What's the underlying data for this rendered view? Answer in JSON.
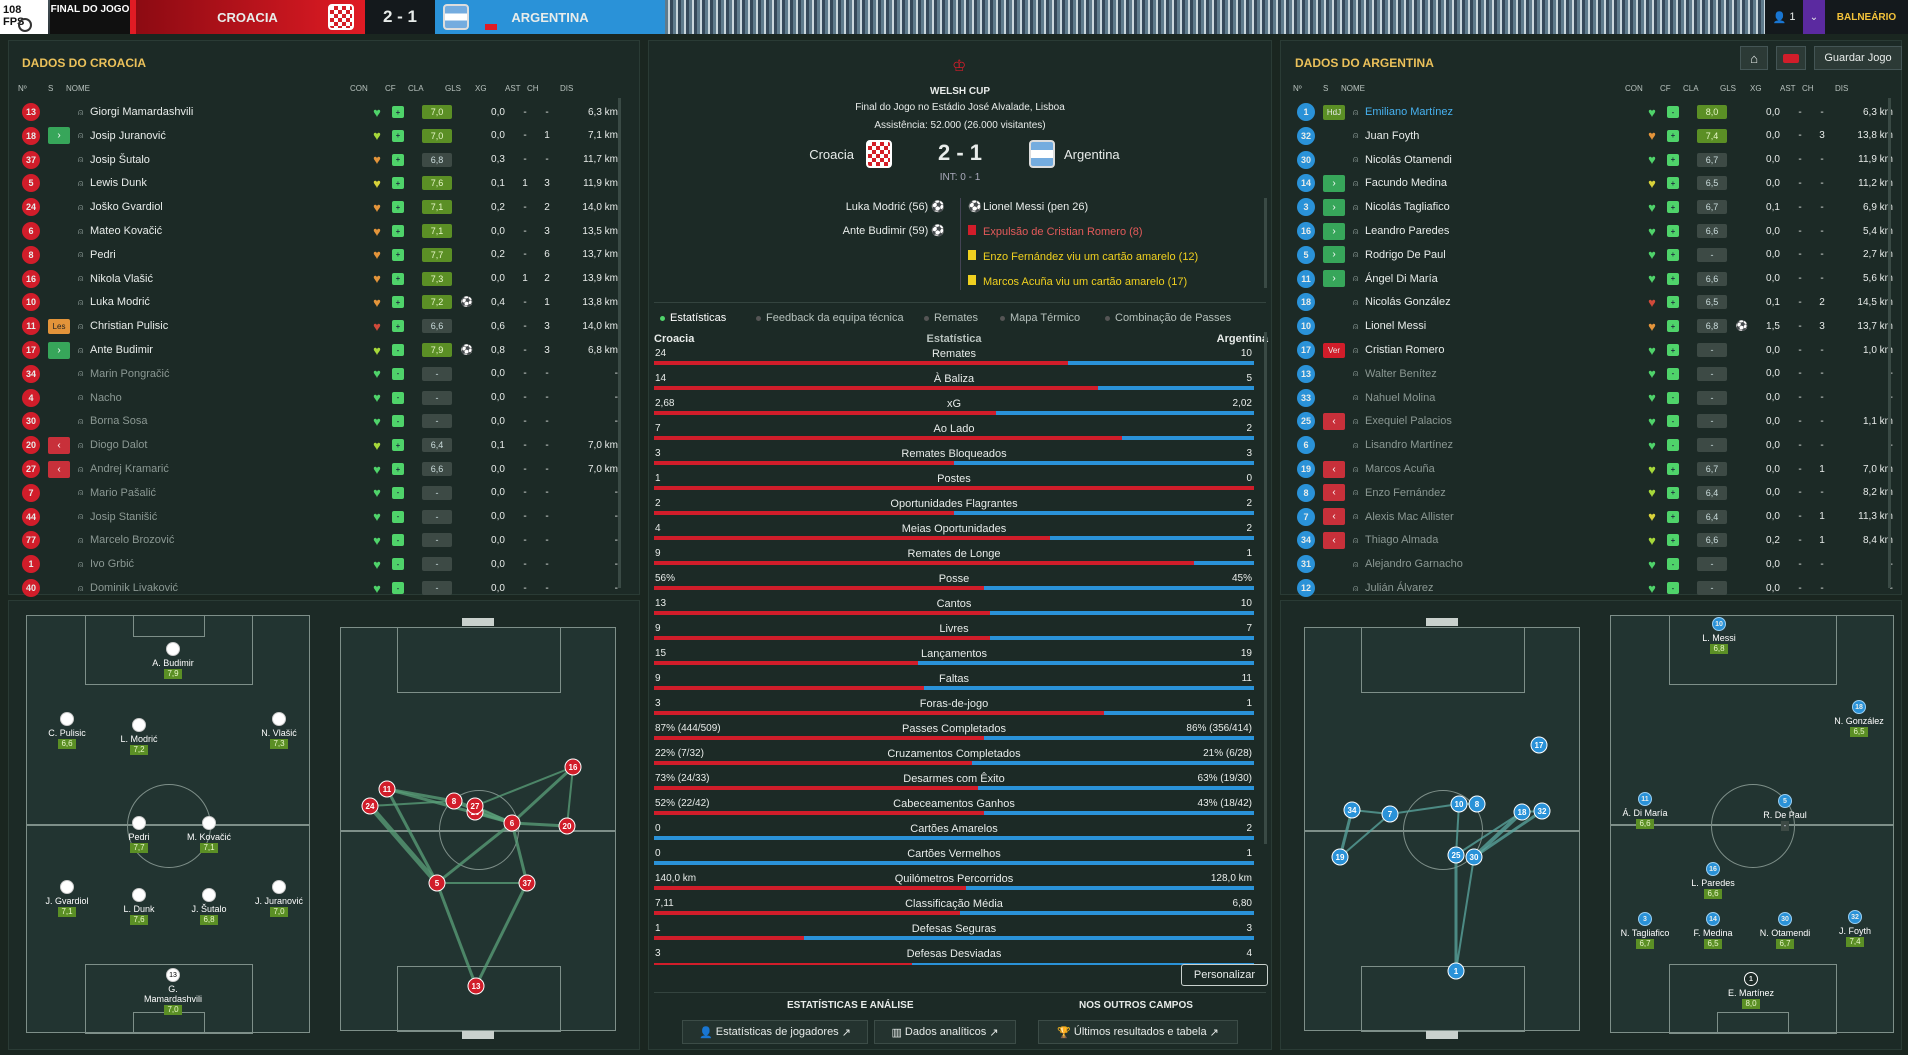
{
  "topbar": {
    "fps": "108 FPS",
    "stage": "FINAL DO JOGO",
    "home_team": "CROACIA",
    "score": "2 - 1",
    "away_team": "ARGENTINA",
    "notifications": "1",
    "balneario": "BALNEÁRIO"
  },
  "header_buttons": {
    "save": "Guardar Jogo",
    "home_icon": "home-icon"
  },
  "left_panel": {
    "title": "DADOS DO CROACIA",
    "headers": [
      "Nº",
      "S",
      "NOME",
      "CON",
      "CF",
      "CLA",
      "GLS",
      "XG",
      "AST",
      "CH",
      "DIS"
    ],
    "players": [
      {
        "n": "13",
        "s": "",
        "name": "Giorgi Mamardashvili",
        "cf": "+",
        "cla": "7,0",
        "gls": "",
        "xg": "0,0",
        "ast": "-",
        "ch": "-",
        "dis": "6,3 km",
        "heart": "g",
        "sub": false
      },
      {
        "n": "18",
        "s": "in",
        "name": "Josip Juranović",
        "cf": "+",
        "cla": "7,0",
        "gls": "",
        "xg": "0,0",
        "ast": "-",
        "ch": "1",
        "dis": "7,1 km",
        "heart": "lg",
        "sub": false
      },
      {
        "n": "37",
        "s": "",
        "name": "Josip Šutalo",
        "cf": "+",
        "cla": "6,8",
        "gls": "",
        "xg": "0,3",
        "ast": "-",
        "ch": "-",
        "dis": "11,7 km",
        "heart": "o",
        "sub": false,
        "dr": true
      },
      {
        "n": "5",
        "s": "",
        "name": "Lewis Dunk",
        "cf": "+",
        "cla": "7,6",
        "gls": "",
        "xg": "0,1",
        "ast": "1",
        "ch": "3",
        "dis": "11,9 km",
        "heart": "y",
        "sub": false
      },
      {
        "n": "24",
        "s": "",
        "name": "Joško Gvardiol",
        "cf": "+",
        "cla": "7,1",
        "gls": "",
        "xg": "0,2",
        "ast": "-",
        "ch": "2",
        "dis": "14,0 km",
        "heart": "o",
        "sub": false
      },
      {
        "n": "6",
        "s": "",
        "name": "Mateo Kovačić",
        "cf": "+",
        "cla": "7,1",
        "gls": "",
        "xg": "0,0",
        "ast": "-",
        "ch": "3",
        "dis": "13,5 km",
        "heart": "o",
        "sub": false
      },
      {
        "n": "8",
        "s": "",
        "name": "Pedri",
        "cf": "+",
        "cla": "7,7",
        "gls": "",
        "xg": "0,2",
        "ast": "-",
        "ch": "6",
        "dis": "13,7 km",
        "heart": "o",
        "sub": false
      },
      {
        "n": "16",
        "s": "",
        "name": "Nikola Vlašić",
        "cf": "+",
        "cla": "7,3",
        "gls": "",
        "xg": "0,0",
        "ast": "1",
        "ch": "2",
        "dis": "13,9 km",
        "heart": "o",
        "sub": false
      },
      {
        "n": "10",
        "s": "",
        "name": "Luka Modrić",
        "cf": "+",
        "cla": "7,2",
        "gls": "⚽",
        "xg": "0,4",
        "ast": "-",
        "ch": "1",
        "dis": "13,8 km",
        "heart": "o",
        "sub": false
      },
      {
        "n": "11",
        "s": "les",
        "name": "Christian Pulisic",
        "cf": "+",
        "cla": "6,6",
        "gls": "",
        "xg": "0,6",
        "ast": "-",
        "ch": "3",
        "dis": "14,0 km",
        "heart": "r",
        "sub": false,
        "dr": true
      },
      {
        "n": "17",
        "s": "in",
        "name": "Ante Budimir",
        "cf": "-",
        "cla": "7,9",
        "gls": "⚽",
        "xg": "0,8",
        "ast": "-",
        "ch": "3",
        "dis": "6,8 km",
        "heart": "lg",
        "sub": false
      },
      {
        "n": "34",
        "s": "",
        "name": "Marin Pongračić",
        "cf": "-",
        "cla": "-",
        "gls": "",
        "xg": "0,0",
        "ast": "-",
        "ch": "-",
        "dis": "-",
        "heart": "g",
        "sub": true
      },
      {
        "n": "4",
        "s": "",
        "name": "Nacho",
        "cf": "-",
        "cla": "-",
        "gls": "",
        "xg": "0,0",
        "ast": "-",
        "ch": "-",
        "dis": "-",
        "heart": "g",
        "sub": true
      },
      {
        "n": "30",
        "s": "",
        "name": "Borna Sosa",
        "cf": "-",
        "cla": "-",
        "gls": "",
        "xg": "0,0",
        "ast": "-",
        "ch": "-",
        "dis": "-",
        "heart": "g",
        "sub": true
      },
      {
        "n": "20",
        "s": "out",
        "name": "Diogo Dalot",
        "cf": "+",
        "cla": "6,4",
        "gls": "",
        "xg": "0,1",
        "ast": "-",
        "ch": "-",
        "dis": "7,0 km",
        "heart": "lg",
        "sub": true,
        "dr": true
      },
      {
        "n": "27",
        "s": "out",
        "name": "Andrej Kramarić",
        "cf": "+",
        "cla": "6,6",
        "gls": "",
        "xg": "0,0",
        "ast": "-",
        "ch": "-",
        "dis": "7,0 km",
        "heart": "g",
        "sub": true,
        "dr": true
      },
      {
        "n": "7",
        "s": "",
        "name": "Mario Pašalić",
        "cf": "-",
        "cla": "-",
        "gls": "",
        "xg": "0,0",
        "ast": "-",
        "ch": "-",
        "dis": "-",
        "heart": "g",
        "sub": true
      },
      {
        "n": "44",
        "s": "",
        "name": "Josip Stanišić",
        "cf": "-",
        "cla": "-",
        "gls": "",
        "xg": "0,0",
        "ast": "-",
        "ch": "-",
        "dis": "-",
        "heart": "g",
        "sub": true
      },
      {
        "n": "77",
        "s": "",
        "name": "Marcelo Brozović",
        "cf": "-",
        "cla": "-",
        "gls": "",
        "xg": "0,0",
        "ast": "-",
        "ch": "-",
        "dis": "-",
        "heart": "g",
        "sub": true
      },
      {
        "n": "1",
        "s": "",
        "name": "Ivo Grbić",
        "cf": "-",
        "cla": "-",
        "gls": "",
        "xg": "0,0",
        "ast": "-",
        "ch": "-",
        "dis": "-",
        "heart": "g",
        "sub": true
      },
      {
        "n": "40",
        "s": "",
        "name": "Dominik Livaković",
        "cf": "-",
        "cla": "-",
        "gls": "",
        "xg": "0,0",
        "ast": "-",
        "ch": "-",
        "dis": "-",
        "heart": "g",
        "sub": true
      }
    ]
  },
  "right_panel": {
    "title": "DADOS DO ARGENTINA",
    "headers": [
      "Nº",
      "S",
      "NOME",
      "CON",
      "CF",
      "CLA",
      "GLS",
      "XG",
      "AST",
      "CH",
      "DIS"
    ],
    "players": [
      {
        "n": "1",
        "s": "hdj",
        "name": "Emiliano Martínez",
        "cf": "-",
        "cla": "8,0",
        "gls": "",
        "xg": "0,0",
        "ast": "-",
        "ch": "-",
        "dis": "6,3 km",
        "heart": "g",
        "sub": false,
        "hl": true
      },
      {
        "n": "32",
        "s": "",
        "name": "Juan Foyth",
        "cf": "+",
        "cla": "7,4",
        "gls": "",
        "xg": "0,0",
        "ast": "-",
        "ch": "3",
        "dis": "13,8 km",
        "heart": "o",
        "sub": false
      },
      {
        "n": "30",
        "s": "",
        "name": "Nicolás Otamendi",
        "cf": "+",
        "cla": "6,7",
        "gls": "",
        "xg": "0,0",
        "ast": "-",
        "ch": "-",
        "dis": "11,9 km",
        "heart": "g",
        "sub": false,
        "dr": true
      },
      {
        "n": "14",
        "s": "in",
        "name": "Facundo Medina",
        "cf": "+",
        "cla": "6,5",
        "gls": "",
        "xg": "0,0",
        "ast": "-",
        "ch": "-",
        "dis": "11,2 km",
        "heart": "y",
        "sub": false,
        "dr": true
      },
      {
        "n": "3",
        "s": "in",
        "name": "Nicolás Tagliafico",
        "cf": "+",
        "cla": "6,7",
        "gls": "",
        "xg": "0,1",
        "ast": "-",
        "ch": "-",
        "dis": "6,9 km",
        "heart": "g",
        "sub": false,
        "dr": true
      },
      {
        "n": "16",
        "s": "in",
        "name": "Leandro Paredes",
        "cf": "+",
        "cla": "6,6",
        "gls": "",
        "xg": "0,0",
        "ast": "-",
        "ch": "-",
        "dis": "5,4 km",
        "heart": "g",
        "sub": false,
        "dr": true
      },
      {
        "n": "5",
        "s": "in",
        "name": "Rodrigo De Paul",
        "cf": "+",
        "cla": "-",
        "gls": "",
        "xg": "0,0",
        "ast": "-",
        "ch": "-",
        "dis": "2,7 km",
        "heart": "g",
        "sub": false,
        "dr": true
      },
      {
        "n": "11",
        "s": "in",
        "name": "Ángel Di María",
        "cf": "+",
        "cla": "6,6",
        "gls": "",
        "xg": "0,0",
        "ast": "-",
        "ch": "-",
        "dis": "5,6 km",
        "heart": "g",
        "sub": false,
        "dr": true
      },
      {
        "n": "18",
        "s": "",
        "name": "Nicolás González",
        "cf": "+",
        "cla": "6,5",
        "gls": "",
        "xg": "0,1",
        "ast": "-",
        "ch": "2",
        "dis": "14,5 km",
        "heart": "r",
        "sub": false,
        "dr": true
      },
      {
        "n": "10",
        "s": "",
        "name": "Lionel Messi",
        "cf": "+",
        "cla": "6,8",
        "gls": "⚽",
        "xg": "1,5",
        "ast": "-",
        "ch": "3",
        "dis": "13,7 km",
        "heart": "o",
        "sub": false,
        "dr": true
      },
      {
        "n": "17",
        "s": "ver",
        "name": "Cristian Romero",
        "cf": "+",
        "cla": "-",
        "gls": "",
        "xg": "0,0",
        "ast": "-",
        "ch": "-",
        "dis": "1,0 km",
        "heart": "g",
        "sub": false,
        "dr": true
      },
      {
        "n": "13",
        "s": "",
        "name": "Walter Benítez",
        "cf": "-",
        "cla": "-",
        "gls": "",
        "xg": "0,0",
        "ast": "-",
        "ch": "-",
        "dis": "-",
        "heart": "g",
        "sub": true
      },
      {
        "n": "33",
        "s": "",
        "name": "Nahuel Molina",
        "cf": "-",
        "cla": "-",
        "gls": "",
        "xg": "0,0",
        "ast": "-",
        "ch": "-",
        "dis": "-",
        "heart": "g",
        "sub": true
      },
      {
        "n": "25",
        "s": "out",
        "name": "Exequiel Palacios",
        "cf": "-",
        "cla": "-",
        "gls": "",
        "xg": "0,0",
        "ast": "-",
        "ch": "-",
        "dis": "1,1 km",
        "heart": "g",
        "sub": true
      },
      {
        "n": "6",
        "s": "",
        "name": "Lisandro Martínez",
        "cf": "-",
        "cla": "-",
        "gls": "",
        "xg": "0,0",
        "ast": "-",
        "ch": "-",
        "dis": "-",
        "heart": "g",
        "sub": true
      },
      {
        "n": "19",
        "s": "out",
        "name": "Marcos Acuña",
        "cf": "+",
        "cla": "6,7",
        "gls": "",
        "xg": "0,0",
        "ast": "-",
        "ch": "1",
        "dis": "7,0 km",
        "heart": "lg",
        "sub": true,
        "dr": true
      },
      {
        "n": "8",
        "s": "out",
        "name": "Enzo Fernández",
        "cf": "+",
        "cla": "6,4",
        "gls": "",
        "xg": "0,0",
        "ast": "-",
        "ch": "-",
        "dis": "8,2 km",
        "heart": "lg",
        "sub": true,
        "dr": true
      },
      {
        "n": "7",
        "s": "out",
        "name": "Alexis Mac Allister",
        "cf": "+",
        "cla": "6,4",
        "gls": "",
        "xg": "0,0",
        "ast": "-",
        "ch": "1",
        "dis": "11,3 km",
        "heart": "y",
        "sub": true,
        "dr": true
      },
      {
        "n": "34",
        "s": "out",
        "name": "Thiago Almada",
        "cf": "+",
        "cla": "6,6",
        "gls": "",
        "xg": "0,2",
        "ast": "-",
        "ch": "1",
        "dis": "8,4 km",
        "heart": "lg",
        "sub": true,
        "dr": true
      },
      {
        "n": "31",
        "s": "",
        "name": "Alejandro Garnacho",
        "cf": "-",
        "cla": "-",
        "gls": "",
        "xg": "0,0",
        "ast": "-",
        "ch": "-",
        "dis": "-",
        "heart": "g",
        "sub": true
      },
      {
        "n": "12",
        "s": "",
        "name": "Julián Álvarez",
        "cf": "-",
        "cla": "-",
        "gls": "",
        "xg": "0,0",
        "ast": "-",
        "ch": "-",
        "dis": "-",
        "heart": "g",
        "sub": true
      }
    ]
  },
  "center": {
    "competition": "WELSH CUP",
    "venue": "Final do Jogo no Estádio José Alvalade, Lisboa",
    "attendance": "Assistência: 52.000 (26.000 visitantes)",
    "home": "Croacia",
    "away": "Argentina",
    "score": "2 - 1",
    "ht": "INT: 0 - 1",
    "events_home": [
      "Luka Modrić (56)",
      "Ante Budimir (59)"
    ],
    "events_away": [
      {
        "text": "Lionel Messi (pen 26)",
        "type": "goal"
      },
      {
        "text": "Expulsão de Cristian Romero (8)",
        "type": "red"
      },
      {
        "text": "Enzo Fernández viu um cartão amarelo (12)",
        "type": "yellow"
      },
      {
        "text": "Marcos Acuña viu um cartão amarelo (17)",
        "type": "yellow"
      }
    ],
    "tabs": [
      "Estatísticas",
      "Feedback da equipa técnica",
      "Remates",
      "Mapa Térmico",
      "Combinação de Passes"
    ],
    "stats_header": {
      "home": "Croacia",
      "label": "Estatística",
      "away": "Argentina"
    },
    "stats": [
      {
        "label": "Remates",
        "home": "24",
        "away": "10",
        "hf": 0.69
      },
      {
        "label": "À Baliza",
        "home": "14",
        "away": "5",
        "hf": 0.74
      },
      {
        "label": "xG",
        "home": "2,68",
        "away": "2,02",
        "hf": 0.57
      },
      {
        "label": "Ao Lado",
        "home": "7",
        "away": "2",
        "hf": 0.78
      },
      {
        "label": "Remates Bloqueados",
        "home": "3",
        "away": "3",
        "hf": 0.5
      },
      {
        "label": "Postes",
        "home": "1",
        "away": "0",
        "hf": 1.0
      },
      {
        "label": "Oportunidades Flagrantes",
        "home": "2",
        "away": "2",
        "hf": 0.5
      },
      {
        "label": "Meias Oportunidades",
        "home": "4",
        "away": "2",
        "hf": 0.66
      },
      {
        "label": "Remates de Longe",
        "home": "9",
        "away": "1",
        "hf": 0.9
      },
      {
        "label": "Posse",
        "home": "56%",
        "away": "45%",
        "hf": 0.55
      },
      {
        "label": "Cantos",
        "home": "13",
        "away": "10",
        "hf": 0.56
      },
      {
        "label": "Livres",
        "home": "9",
        "away": "7",
        "hf": 0.56
      },
      {
        "label": "Lançamentos",
        "home": "15",
        "away": "19",
        "hf": 0.44
      },
      {
        "label": "Faltas",
        "home": "9",
        "away": "11",
        "hf": 0.45
      },
      {
        "label": "Foras-de-jogo",
        "home": "3",
        "away": "1",
        "hf": 0.75
      },
      {
        "label": "Passes Completados",
        "home": "87% (444/509)",
        "away": "86% (356/414)",
        "hf": 0.55
      },
      {
        "label": "Cruzamentos Completados",
        "home": "22% (7/32)",
        "away": "21% (6/28)",
        "hf": 0.53
      },
      {
        "label": "Desarmes com Êxito",
        "home": "73% (24/33)",
        "away": "63% (19/30)",
        "hf": 0.54
      },
      {
        "label": "Cabeceamentos Ganhos",
        "home": "52% (22/42)",
        "away": "43% (18/42)",
        "hf": 0.55
      },
      {
        "label": "Cartões Amarelos",
        "home": "0",
        "away": "2",
        "hf": 0.0
      },
      {
        "label": "Cartões Vermelhos",
        "home": "0",
        "away": "1",
        "hf": 0.0
      },
      {
        "label": "Quilómetros Percorridos",
        "home": "140,0 km",
        "away": "128,0 km",
        "hf": 0.52
      },
      {
        "label": "Classificação Média",
        "home": "7,11",
        "away": "6,80",
        "hf": 0.51
      },
      {
        "label": "Defesas Seguras",
        "home": "1",
        "away": "3",
        "hf": 0.25
      },
      {
        "label": "Defesas Desviadas",
        "home": "3",
        "away": "4",
        "hf": 0.43
      }
    ],
    "personalizar": "Personalizar",
    "footer": {
      "sec1": "ESTATÍSTICAS E ANÁLISE",
      "sec2": "NOS OUTROS CAMPOS",
      "btn1": "Estatísticas de jogadores",
      "btn2": "Dados analíticos",
      "btn3": "Últimos resultados e tabela"
    }
  },
  "cro_formation": [
    {
      "name": "A. Budimir",
      "rating": "7,9"
    },
    {
      "name": "C. Pulisic",
      "rating": "6,6"
    },
    {
      "name": "L. Modrić",
      "rating": "7,2"
    },
    {
      "name": "N. Vlašić",
      "rating": "7,3"
    },
    {
      "name": "Pedri",
      "rating": "7,7"
    },
    {
      "name": "M. Kovačić",
      "rating": "7,1"
    },
    {
      "name": "J. Gvardiol",
      "rating": "7,1"
    },
    {
      "name": "L. Dunk",
      "rating": "7,6"
    },
    {
      "name": "J. Šutalo",
      "rating": "6,8"
    },
    {
      "name": "J. Juranović",
      "rating": "7,0"
    },
    {
      "name": "G. Mamardashvili",
      "rating": "7,0"
    }
  ],
  "arg_formation": [
    {
      "name": "L. Messi",
      "rating": "6,8",
      "num": "10"
    },
    {
      "name": "N. González",
      "rating": "6,5",
      "num": "18"
    },
    {
      "name": "Á. Di María",
      "rating": "6,6",
      "num": "11"
    },
    {
      "name": "R. De Paul",
      "rating": "-",
      "num": "5"
    },
    {
      "name": "L. Paredes",
      "rating": "6,6",
      "num": "16"
    },
    {
      "name": "N. Tagliafico",
      "rating": "6,7",
      "num": "3"
    },
    {
      "name": "F. Medina",
      "rating": "6,5",
      "num": "14"
    },
    {
      "name": "N. Otamendi",
      "rating": "6,7",
      "num": "30"
    },
    {
      "name": "J. Foyth",
      "rating": "7,4",
      "num": "32"
    },
    {
      "name": "E. Martínez",
      "rating": "8,0",
      "num": "1"
    }
  ],
  "cro_pass_nodes": [
    "16",
    "11",
    "24",
    "8",
    "10",
    "20",
    "6",
    "5",
    "37",
    "13",
    "27"
  ],
  "arg_pass_nodes": [
    "17",
    "34",
    "7",
    "19",
    "10",
    "8",
    "18",
    "32",
    "25",
    "30",
    "1"
  ]
}
